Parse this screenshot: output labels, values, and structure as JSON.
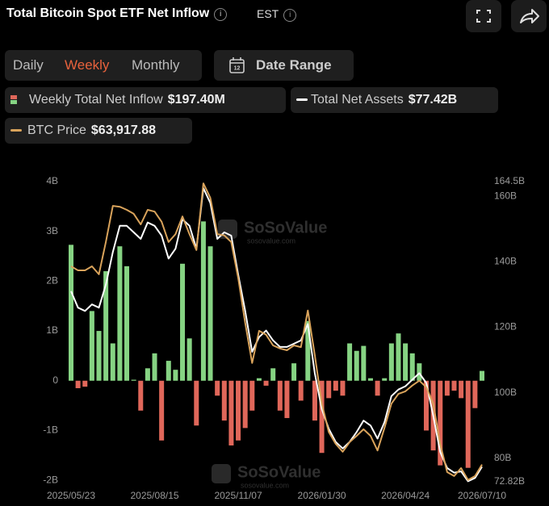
{
  "header": {
    "title": "Total Bitcoin Spot ETF Net Inflow",
    "timezone": "EST"
  },
  "tabs": [
    "Daily",
    "Weekly",
    "Monthly"
  ],
  "active_tab": "Weekly",
  "date_range": "Date Range",
  "watermark": {
    "brand": "SoSoValue",
    "site": "sosovalue.com"
  },
  "chart_data": {
    "type": "bar",
    "categories": [
      "2025/05/23",
      null,
      null,
      null,
      null,
      null,
      null,
      null,
      null,
      null,
      null,
      null,
      "2025/08/15",
      null,
      null,
      null,
      null,
      null,
      null,
      null,
      null,
      null,
      null,
      null,
      "2025/11/07",
      null,
      null,
      null,
      null,
      null,
      null,
      null,
      null,
      null,
      null,
      null,
      "2026/01/30",
      null,
      null,
      null,
      null,
      null,
      null,
      null,
      null,
      null,
      null,
      null,
      "2026/04/24",
      null,
      null,
      null,
      null,
      null,
      null,
      null,
      null,
      null,
      null,
      "2026/07/10"
    ],
    "ylim": [
      -2.03,
      4
    ],
    "yticks": [
      {
        "value": 4,
        "label": "4B"
      },
      {
        "value": 3,
        "label": "3B"
      },
      {
        "value": 2,
        "label": "2B"
      },
      {
        "value": 1,
        "label": "1B"
      },
      0,
      {
        "value": -1,
        "label": "-1B"
      },
      {
        "value": -2,
        "label": "-2B"
      }
    ],
    "y2lim": [
      72.82,
      164.5
    ],
    "y2ticks": [
      {
        "value": 164.5,
        "label": "164.5B"
      },
      {
        "value": 160,
        "label": "160B"
      },
      {
        "value": 140,
        "label": "140B"
      },
      {
        "value": 120,
        "label": "120B"
      },
      {
        "value": 100,
        "label": "100B"
      },
      {
        "value": 80,
        "label": "80B"
      },
      {
        "value": 72.82,
        "label": "72.82B"
      }
    ],
    "y3lim": [
      60000,
      128000
    ],
    "grid": false,
    "series": [
      {
        "name": "Weekly Total Net Inflow",
        "type": "bar",
        "color": "#86d383",
        "negative_color": "#e0675a",
        "legend_value": "$197.40M",
        "values": [
          2.73,
          -0.15,
          -0.12,
          1.4,
          1.0,
          2.2,
          0.75,
          2.7,
          2.3,
          0.02,
          -0.6,
          0.25,
          0.55,
          -1.2,
          0.4,
          0.22,
          2.35,
          0.85,
          -0.9,
          3.2,
          2.7,
          -0.3,
          -0.8,
          -1.3,
          -1.2,
          -0.95,
          -0.6,
          0.05,
          -0.1,
          0.25,
          -0.6,
          -0.75,
          0.35,
          -0.4,
          1.2,
          -0.8,
          -1.45,
          -0.35,
          -0.2,
          -0.3,
          0.75,
          0.6,
          0.7,
          0.05,
          -0.3,
          0.05,
          0.75,
          0.95,
          0.75,
          0.55,
          0.35,
          -1.0,
          -1.4,
          -1.7,
          -0.3,
          -0.2,
          -0.35,
          -1.75,
          -0.55,
          0.1974
        ]
      },
      {
        "name": "Total Net Assets",
        "type": "line",
        "axis": "y2",
        "color": "#ffffff",
        "legend_value": "$77.42B",
        "values": [
          131,
          126,
          125,
          127,
          126,
          133,
          143,
          151,
          151,
          149,
          147,
          152,
          151,
          148,
          141,
          144,
          153,
          151,
          144,
          162.5,
          158,
          147,
          149,
          148,
          136,
          125,
          112.5,
          117,
          119,
          116,
          114,
          114,
          115,
          116,
          121,
          106,
          95,
          89,
          85,
          83,
          85,
          88,
          91.5,
          90,
          86,
          91,
          99,
          101,
          102,
          104,
          106,
          103,
          93,
          82,
          77,
          75.6,
          76,
          73,
          74,
          77.42
        ]
      },
      {
        "name": "BTC Price",
        "type": "line",
        "axis": "y3",
        "color": "#d9a35b",
        "legend_value": "$63,917.88",
        "values": [
          108800,
          107900,
          107900,
          108800,
          107000,
          114300,
          122500,
          122300,
          121600,
          120700,
          118300,
          121600,
          121200,
          118900,
          114300,
          116100,
          120100,
          116100,
          112500,
          127600,
          124300,
          116100,
          115800,
          114300,
          106100,
          96000,
          86900,
          94200,
          93300,
          90900,
          90200,
          89800,
          90900,
          90500,
          98800,
          88700,
          77700,
          71300,
          68600,
          66800,
          69000,
          70400,
          71900,
          70400,
          67100,
          72200,
          77700,
          79900,
          80500,
          81800,
          82900,
          81400,
          77700,
          68600,
          62200,
          61300,
          63100,
          60400,
          61300,
          63917.88
        ]
      }
    ]
  }
}
